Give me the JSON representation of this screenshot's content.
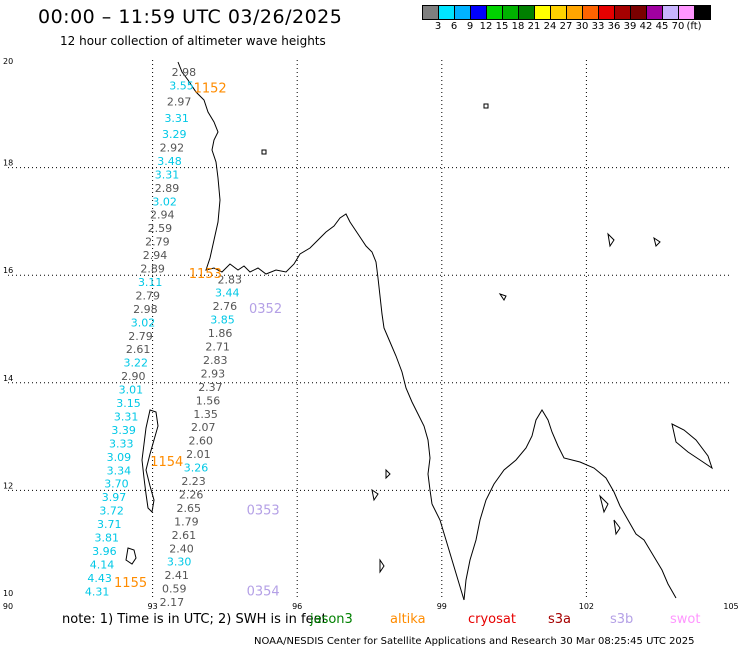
{
  "title": "00:00 – 11:59 UTC 03/26/2025",
  "subtitle": "12 hour collection of altimeter wave heights",
  "scale": {
    "colors": [
      "#7f7f7f",
      "#00e5ff",
      "#00b2ff",
      "#0000ff",
      "#00d200",
      "#00b200",
      "#008000",
      "#ffff00",
      "#ffd200",
      "#ffa500",
      "#ff6400",
      "#e60000",
      "#a50000",
      "#7a0000",
      "#a000a0",
      "#c8b4ff",
      "#ff96ff",
      "#000000"
    ],
    "labels": [
      "3",
      "6",
      "9",
      "12",
      "15",
      "18",
      "21",
      "24",
      "27",
      "30",
      "33",
      "36",
      "39",
      "42",
      "45",
      "70",
      "(ft)"
    ]
  },
  "axes": {
    "lat_labels": [
      "20",
      "18",
      "16",
      "14",
      "12",
      "10"
    ],
    "lon_labels": [
      "90",
      "93",
      "96",
      "99",
      "102",
      "105"
    ]
  },
  "chart_data": {
    "type": "scatter",
    "xlabel": "",
    "ylabel": "",
    "xlim": [
      90,
      105
    ],
    "ylim": [
      10,
      20
    ],
    "grid": true,
    "passes": [
      {
        "time": "1152",
        "color": "#ff8c00",
        "lon": 93.85,
        "lat": 19.4
      },
      {
        "time": "1153",
        "color": "#ff8c00",
        "lon": 93.75,
        "lat": 15.95
      },
      {
        "time": "1154",
        "color": "#ff8c00",
        "lon": 92.95,
        "lat": 12.45
      },
      {
        "time": "1155",
        "color": "#ff8c00",
        "lon": 92.2,
        "lat": 10.2
      },
      {
        "time": "0352",
        "color": "#b4a0e6",
        "lon": 95.0,
        "lat": 15.3
      },
      {
        "time": "0353",
        "color": "#b4a0e6",
        "lon": 94.95,
        "lat": 11.55
      },
      {
        "time": "0354",
        "color": "#b4a0e6",
        "lon": 94.95,
        "lat": 10.05
      }
    ],
    "points": [
      {
        "v": "2.98",
        "c": "#555555",
        "lon": 93.65,
        "lat": 19.7
      },
      {
        "v": "3.55",
        "c": "#00c8e6",
        "lon": 93.6,
        "lat": 19.45
      },
      {
        "v": "2.97",
        "c": "#555555",
        "lon": 93.55,
        "lat": 19.15
      },
      {
        "v": "3.31",
        "c": "#00c8e6",
        "lon": 93.5,
        "lat": 18.85
      },
      {
        "v": "3.29",
        "c": "#00c8e6",
        "lon": 93.45,
        "lat": 18.55
      },
      {
        "v": "2.92",
        "c": "#555555",
        "lon": 93.4,
        "lat": 18.3
      },
      {
        "v": "3.48",
        "c": "#00c8e6",
        "lon": 93.35,
        "lat": 18.05
      },
      {
        "v": "3.31",
        "c": "#00c8e6",
        "lon": 93.3,
        "lat": 17.8
      },
      {
        "v": "2.89",
        "c": "#555555",
        "lon": 93.3,
        "lat": 17.55
      },
      {
        "v": "3.02",
        "c": "#00c8e6",
        "lon": 93.25,
        "lat": 17.3
      },
      {
        "v": "2.94",
        "c": "#555555",
        "lon": 93.2,
        "lat": 17.05
      },
      {
        "v": "2.59",
        "c": "#555555",
        "lon": 93.15,
        "lat": 16.8
      },
      {
        "v": "2.79",
        "c": "#555555",
        "lon": 93.1,
        "lat": 16.55
      },
      {
        "v": "2.94",
        "c": "#555555",
        "lon": 93.05,
        "lat": 16.3
      },
      {
        "v": "2.89",
        "c": "#555555",
        "lon": 93.0,
        "lat": 16.05
      },
      {
        "v": "3.11",
        "c": "#00c8e6",
        "lon": 92.95,
        "lat": 15.8
      },
      {
        "v": "2.79",
        "c": "#555555",
        "lon": 92.9,
        "lat": 15.55
      },
      {
        "v": "2.98",
        "c": "#555555",
        "lon": 92.85,
        "lat": 15.3
      },
      {
        "v": "3.02",
        "c": "#00c8e6",
        "lon": 92.8,
        "lat": 15.05
      },
      {
        "v": "2.79",
        "c": "#555555",
        "lon": 92.75,
        "lat": 14.8
      },
      {
        "v": "2.61",
        "c": "#555555",
        "lon": 92.7,
        "lat": 14.55
      },
      {
        "v": "3.22",
        "c": "#00c8e6",
        "lon": 92.65,
        "lat": 14.3
      },
      {
        "v": "2.90",
        "c": "#555555",
        "lon": 92.6,
        "lat": 14.05
      },
      {
        "v": "3.01",
        "c": "#00c8e6",
        "lon": 92.55,
        "lat": 13.8
      },
      {
        "v": "3.15",
        "c": "#00c8e6",
        "lon": 92.5,
        "lat": 13.55
      },
      {
        "v": "3.31",
        "c": "#00c8e6",
        "lon": 92.45,
        "lat": 13.3
      },
      {
        "v": "3.39",
        "c": "#00c8e6",
        "lon": 92.4,
        "lat": 13.05
      },
      {
        "v": "3.33",
        "c": "#00c8e6",
        "lon": 92.35,
        "lat": 12.8
      },
      {
        "v": "3.09",
        "c": "#00c8e6",
        "lon": 92.3,
        "lat": 12.55
      },
      {
        "v": "3.34",
        "c": "#00c8e6",
        "lon": 92.3,
        "lat": 12.3
      },
      {
        "v": "3.70",
        "c": "#00c8e6",
        "lon": 92.25,
        "lat": 12.05
      },
      {
        "v": "3.97",
        "c": "#00c8e6",
        "lon": 92.2,
        "lat": 11.8
      },
      {
        "v": "3.72",
        "c": "#00c8e6",
        "lon": 92.15,
        "lat": 11.55
      },
      {
        "v": "3.71",
        "c": "#00c8e6",
        "lon": 92.1,
        "lat": 11.3
      },
      {
        "v": "3.81",
        "c": "#00c8e6",
        "lon": 92.05,
        "lat": 11.05
      },
      {
        "v": "3.96",
        "c": "#00c8e6",
        "lon": 92.0,
        "lat": 10.8
      },
      {
        "v": "4.14",
        "c": "#00c8e6",
        "lon": 91.95,
        "lat": 10.55
      },
      {
        "v": "4.43",
        "c": "#00c8e6",
        "lon": 91.9,
        "lat": 10.3
      },
      {
        "v": "4.31",
        "c": "#00c8e6",
        "lon": 91.85,
        "lat": 10.05
      },
      {
        "v": "2.83",
        "c": "#555555",
        "lon": 94.6,
        "lat": 15.85
      },
      {
        "v": "3.44",
        "c": "#00c8e6",
        "lon": 94.55,
        "lat": 15.6
      },
      {
        "v": "2.76",
        "c": "#555555",
        "lon": 94.5,
        "lat": 15.35
      },
      {
        "v": "3.85",
        "c": "#00c8e6",
        "lon": 94.45,
        "lat": 15.1
      },
      {
        "v": "1.86",
        "c": "#555555",
        "lon": 94.4,
        "lat": 14.85
      },
      {
        "v": "2.71",
        "c": "#555555",
        "lon": 94.35,
        "lat": 14.6
      },
      {
        "v": "2.83",
        "c": "#555555",
        "lon": 94.3,
        "lat": 14.35
      },
      {
        "v": "2.93",
        "c": "#555555",
        "lon": 94.25,
        "lat": 14.1
      },
      {
        "v": "2.37",
        "c": "#555555",
        "lon": 94.2,
        "lat": 13.85
      },
      {
        "v": "1.56",
        "c": "#555555",
        "lon": 94.15,
        "lat": 13.6
      },
      {
        "v": "1.35",
        "c": "#555555",
        "lon": 94.1,
        "lat": 13.35
      },
      {
        "v": "2.07",
        "c": "#555555",
        "lon": 94.05,
        "lat": 13.1
      },
      {
        "v": "2.60",
        "c": "#555555",
        "lon": 94.0,
        "lat": 12.85
      },
      {
        "v": "2.01",
        "c": "#555555",
        "lon": 93.95,
        "lat": 12.6
      },
      {
        "v": "3.26",
        "c": "#00c8e6",
        "lon": 93.9,
        "lat": 12.35
      },
      {
        "v": "2.23",
        "c": "#555555",
        "lon": 93.85,
        "lat": 12.1
      },
      {
        "v": "2.26",
        "c": "#555555",
        "lon": 93.8,
        "lat": 11.85
      },
      {
        "v": "2.65",
        "c": "#555555",
        "lon": 93.75,
        "lat": 11.6
      },
      {
        "v": "1.79",
        "c": "#555555",
        "lon": 93.7,
        "lat": 11.35
      },
      {
        "v": "2.61",
        "c": "#555555",
        "lon": 93.65,
        "lat": 11.1
      },
      {
        "v": "2.40",
        "c": "#555555",
        "lon": 93.6,
        "lat": 10.85
      },
      {
        "v": "3.30",
        "c": "#00c8e6",
        "lon": 93.55,
        "lat": 10.6
      },
      {
        "v": "2.41",
        "c": "#555555",
        "lon": 93.5,
        "lat": 10.35
      },
      {
        "v": "0.59",
        "c": "#555555",
        "lon": 93.45,
        "lat": 10.1
      },
      {
        "v": "2.17",
        "c": "#555555",
        "lon": 93.4,
        "lat": 9.85
      }
    ]
  },
  "footnote": "note:  1) Time is in UTC; 2) SWH is in feet",
  "satellites": [
    {
      "name": "jason3",
      "color": "#008000"
    },
    {
      "name": "altika",
      "color": "#ff8c00"
    },
    {
      "name": "cryosat",
      "color": "#e60000"
    },
    {
      "name": "s3a",
      "color": "#a50000"
    },
    {
      "name": "s3b",
      "color": "#b4a0e6"
    },
    {
      "name": "swot",
      "color": "#ff96ff"
    }
  ],
  "credit": "NOAA/NESDIS Center for Satellite Applications and Research    30 Mar 08:25:45 UTC 2025"
}
